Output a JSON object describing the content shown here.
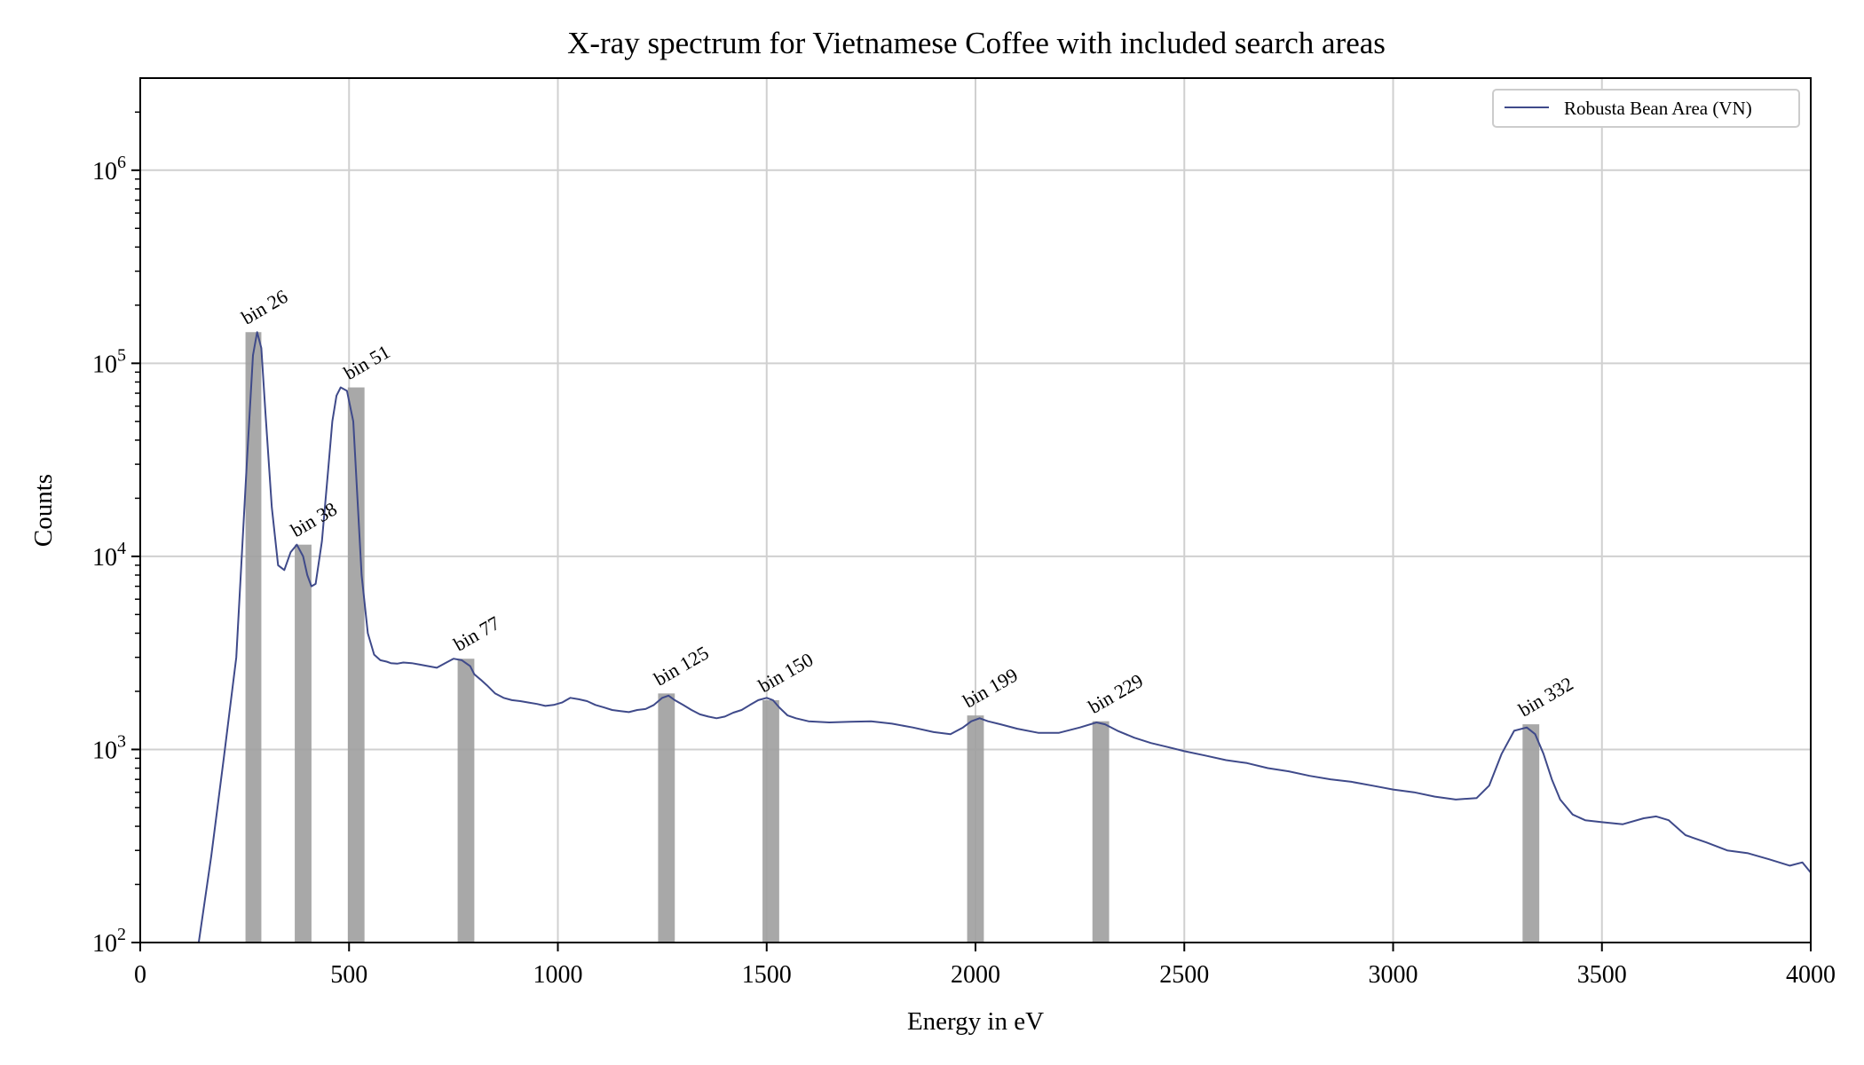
{
  "chart_data": {
    "type": "line",
    "title": "X-ray spectrum for Vietnamese Coffee with included search areas",
    "xlabel": "Energy in eV",
    "ylabel": "Counts",
    "xlim": [
      0,
      4000
    ],
    "ylim": [
      100,
      3000000
    ],
    "yscale": "log",
    "grid": true,
    "legend_position": "top-right",
    "x_ticks": [
      0,
      500,
      1000,
      1500,
      2000,
      2500,
      3000,
      3500,
      4000
    ],
    "y_ticks": [
      {
        "value": 100,
        "base": "10",
        "exp": "2"
      },
      {
        "value": 1000,
        "base": "10",
        "exp": "3"
      },
      {
        "value": 10000,
        "base": "10",
        "exp": "4"
      },
      {
        "value": 100000,
        "base": "10",
        "exp": "5"
      },
      {
        "value": 1000000,
        "base": "10",
        "exp": "6"
      }
    ],
    "series": [
      {
        "name": "Robusta Bean Area (VN)",
        "color": "#3f4a8a",
        "x": [
          140,
          170,
          200,
          230,
          255,
          270,
          280,
          290,
          300,
          315,
          330,
          345,
          360,
          375,
          390,
          400,
          410,
          420,
          435,
          450,
          460,
          470,
          480,
          495,
          510,
          520,
          530,
          545,
          560,
          575,
          590,
          600,
          615,
          630,
          650,
          670,
          690,
          710,
          730,
          750,
          770,
          790,
          800,
          815,
          830,
          850,
          870,
          890,
          910,
          930,
          950,
          970,
          990,
          1010,
          1030,
          1050,
          1070,
          1090,
          1110,
          1130,
          1150,
          1170,
          1190,
          1210,
          1230,
          1250,
          1265,
          1280,
          1300,
          1320,
          1340,
          1360,
          1380,
          1400,
          1420,
          1440,
          1460,
          1480,
          1500,
          1515,
          1530,
          1550,
          1570,
          1600,
          1650,
          1700,
          1750,
          1800,
          1850,
          1900,
          1940,
          1970,
          1990,
          2010,
          2030,
          2060,
          2100,
          2150,
          2200,
          2250,
          2290,
          2310,
          2340,
          2380,
          2420,
          2460,
          2500,
          2550,
          2600,
          2650,
          2700,
          2750,
          2800,
          2850,
          2900,
          2950,
          3000,
          3050,
          3100,
          3150,
          3200,
          3230,
          3260,
          3290,
          3320,
          3340,
          3360,
          3380,
          3400,
          3430,
          3460,
          3500,
          3550,
          3600,
          3630,
          3660,
          3700,
          3750,
          3800,
          3850,
          3900,
          3950,
          3980,
          4000
        ],
        "values": [
          100,
          280,
          900,
          3000,
          30000,
          110000,
          145000,
          120000,
          55000,
          18000,
          9000,
          8500,
          10500,
          11500,
          10000,
          8000,
          7000,
          7200,
          12000,
          28000,
          50000,
          68000,
          75000,
          72000,
          50000,
          20000,
          8000,
          4000,
          3100,
          2900,
          2850,
          2800,
          2780,
          2820,
          2800,
          2750,
          2700,
          2650,
          2800,
          2950,
          2900,
          2700,
          2450,
          2300,
          2150,
          1950,
          1850,
          1800,
          1780,
          1750,
          1720,
          1680,
          1700,
          1750,
          1850,
          1820,
          1780,
          1700,
          1650,
          1600,
          1580,
          1560,
          1600,
          1620,
          1700,
          1850,
          1900,
          1800,
          1700,
          1600,
          1520,
          1480,
          1450,
          1480,
          1550,
          1600,
          1700,
          1800,
          1850,
          1800,
          1650,
          1500,
          1450,
          1400,
          1380,
          1390,
          1400,
          1360,
          1300,
          1230,
          1200,
          1300,
          1400,
          1450,
          1400,
          1350,
          1280,
          1220,
          1220,
          1300,
          1380,
          1350,
          1250,
          1150,
          1080,
          1030,
          980,
          930,
          880,
          850,
          800,
          770,
          730,
          700,
          680,
          650,
          620,
          600,
          570,
          550,
          560,
          650,
          950,
          1250,
          1300,
          1200,
          950,
          700,
          550,
          460,
          430,
          420,
          410,
          440,
          450,
          430,
          360,
          330,
          300,
          290,
          270,
          250,
          260,
          230
        ]
      }
    ],
    "search_areas": [
      {
        "label": "bin 26",
        "x_start": 252,
        "x_end": 290,
        "top": 145000
      },
      {
        "label": "bin 38",
        "x_start": 370,
        "x_end": 410,
        "top": 11500
      },
      {
        "label": "bin 51",
        "x_start": 497,
        "x_end": 537,
        "top": 75000
      },
      {
        "label": "bin 77",
        "x_start": 760,
        "x_end": 800,
        "top": 2950
      },
      {
        "label": "bin 125",
        "x_start": 1240,
        "x_end": 1280,
        "top": 1950
      },
      {
        "label": "bin 150",
        "x_start": 1490,
        "x_end": 1530,
        "top": 1800
      },
      {
        "label": "bin 199",
        "x_start": 1980,
        "x_end": 2020,
        "top": 1500
      },
      {
        "label": "bin 229",
        "x_start": 2280,
        "x_end": 2320,
        "top": 1400
      },
      {
        "label": "bin 332",
        "x_start": 3310,
        "x_end": 3350,
        "top": 1350
      }
    ]
  }
}
